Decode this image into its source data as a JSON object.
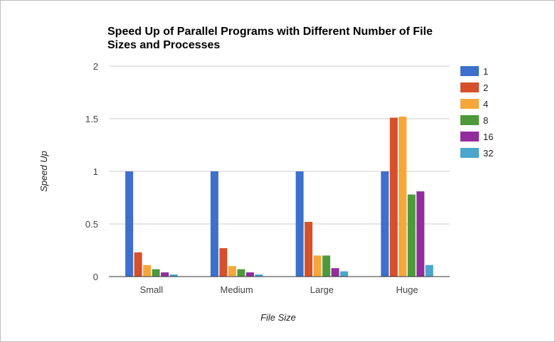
{
  "chart_data": {
    "type": "bar",
    "title": "Speed Up of Parallel Programs with Different Number of File Sizes and Processes",
    "title_lines": [
      "Speed Up of Parallel Programs with Different Number of File",
      "Sizes and Processes"
    ],
    "xlabel": "File Size",
    "ylabel": "Speed Up",
    "categories": [
      "Small",
      "Medium",
      "Large",
      "Huge"
    ],
    "ylim": [
      0,
      2
    ],
    "yticks": [
      "0",
      "0.5",
      "1",
      "1.5",
      "2"
    ],
    "ytick_values": [
      0,
      0.5,
      1,
      1.5,
      2
    ],
    "grid": true,
    "legend_position": "right",
    "series": [
      {
        "name": "1",
        "color": "#3d6fcc",
        "values": [
          1.0,
          1.0,
          1.0,
          1.0
        ]
      },
      {
        "name": "2",
        "color": "#d6502c",
        "values": [
          0.23,
          0.27,
          0.52,
          1.51
        ]
      },
      {
        "name": "4",
        "color": "#f5a73b",
        "values": [
          0.11,
          0.1,
          0.2,
          1.52
        ]
      },
      {
        "name": "8",
        "color": "#4d9a3a",
        "values": [
          0.07,
          0.07,
          0.2,
          0.78
        ]
      },
      {
        "name": "16",
        "color": "#932c9c",
        "values": [
          0.04,
          0.04,
          0.08,
          0.81
        ]
      },
      {
        "name": "32",
        "color": "#4aa6cc",
        "values": [
          0.02,
          0.02,
          0.05,
          0.11
        ]
      }
    ]
  }
}
